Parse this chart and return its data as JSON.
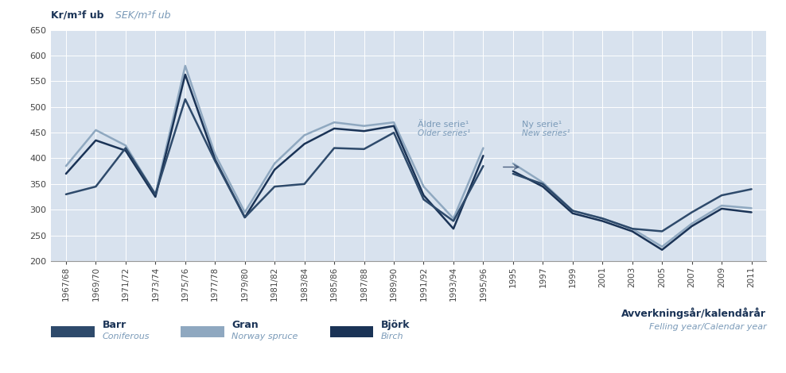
{
  "title_bold": "Kr/m³f ub",
  "title_italic": "SEK/m³f ub",
  "xlabel_bold": "Avverkningsår/kalendårår",
  "xlabel_italic": "Felling year/Calendar year",
  "ylim": [
    200,
    650
  ],
  "yticks": [
    200,
    250,
    300,
    350,
    400,
    450,
    500,
    550,
    600,
    650
  ],
  "bg_color": "#d8e2ee",
  "fig_color": "#ffffff",
  "legend_barr": "Barr",
  "legend_barr_sub": "Coniferous",
  "legend_gran": "Gran",
  "legend_gran_sub": "Norway spruce",
  "legend_bjork": "Björk",
  "legend_bjork_sub": "Birch",
  "color_barr": "#2e4a6b",
  "color_gran": "#8fa8c0",
  "color_bjork": "#1a3356",
  "annotation1_bold": "Äldre serie¹",
  "annotation1_italic": "Older series¹",
  "annotation2_bold": "Ny serie¹",
  "annotation2_italic": "New series¹",
  "label_color": "#1a3356",
  "sub_color": "#7a9ab8",
  "x_labels_old": [
    "1967/68",
    "1969/70",
    "1971/72",
    "1973/74",
    "1975/76",
    "1977/78",
    "1979/80",
    "1981/82",
    "1983/84",
    "1985/86",
    "1987/88",
    "1989/90",
    "1991/92",
    "1993/94",
    "1995/96"
  ],
  "x_labels_new": [
    "1995",
    "1997",
    "1999",
    "2001",
    "2003",
    "2005",
    "2007",
    "2009",
    "2011"
  ],
  "barr_old": [
    330,
    345,
    420,
    330,
    515,
    395,
    285,
    345,
    350,
    420,
    418,
    450,
    320,
    278,
    385
  ],
  "gran_old": [
    385,
    455,
    425,
    330,
    580,
    408,
    295,
    390,
    445,
    470,
    463,
    470,
    345,
    283,
    420
  ],
  "bjork_old": [
    370,
    435,
    415,
    325,
    563,
    398,
    285,
    378,
    428,
    458,
    453,
    463,
    328,
    263,
    405
  ],
  "barr_new": [
    370,
    350,
    298,
    283,
    263,
    258,
    295,
    328,
    340
  ],
  "gran_new": [
    390,
    353,
    298,
    283,
    263,
    228,
    273,
    308,
    303
  ],
  "bjork_new": [
    375,
    345,
    293,
    278,
    258,
    222,
    268,
    302,
    295
  ],
  "linewidth": 1.8
}
